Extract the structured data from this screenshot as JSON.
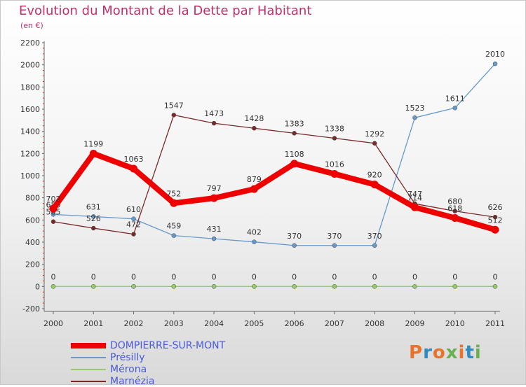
{
  "title": "Evolution du Montant de la Dette par Habitant",
  "subtitle": "(en €)",
  "logo": {
    "text": "Proxiti",
    "colors": [
      "#e8732a",
      "#2e8bc0",
      "#e8732a",
      "#6ab04c",
      "#e8732a",
      "#2e8bc0",
      "#6ab04c"
    ]
  },
  "chart_data": {
    "type": "line",
    "x": [
      "2000",
      "2001",
      "2002",
      "2003",
      "2004",
      "2005",
      "2006",
      "2007",
      "2008",
      "2009",
      "2010",
      "2011"
    ],
    "ylim": [
      -200,
      2200
    ],
    "yticks": [
      "-200",
      "0",
      "200",
      "400",
      "600",
      "800",
      "1000",
      "1200",
      "1400",
      "1600",
      "1800",
      "2000",
      "2200"
    ],
    "grid": false,
    "legend_position": "bottom-left",
    "series": [
      {
        "name": "DOMPIERRE-SUR-MONT",
        "color": "#ee0000",
        "values": [
          702,
          1199,
          1063,
          752,
          797,
          879,
          1108,
          1016,
          920,
          714,
          618,
          512
        ],
        "labels": [
          "702",
          "1199",
          "1063",
          "752",
          "797",
          "879",
          "1108",
          "1016",
          "920",
          "714",
          "618",
          "512"
        ]
      },
      {
        "name": "Présilly",
        "color": "#6699cc",
        "values": [
          650,
          631,
          610,
          459,
          431,
          402,
          370,
          370,
          370,
          1523,
          1611,
          2010
        ],
        "labels": [
          "650",
          "631",
          "610",
          "459",
          "431",
          "402",
          "370",
          "370",
          "370",
          "1523",
          "1611",
          "2010"
        ]
      },
      {
        "name": "Mérona",
        "color": "#99cc66",
        "values": [
          0,
          0,
          0,
          0,
          0,
          0,
          0,
          0,
          0,
          0,
          0,
          0
        ],
        "labels": [
          "0",
          "0",
          "0",
          "0",
          "0",
          "0",
          "0",
          "0",
          "0",
          "0",
          "0",
          "0"
        ]
      },
      {
        "name": "Marnézia",
        "color": "#7a2a2a",
        "values": [
          585,
          526,
          472,
          1547,
          1473,
          1428,
          1383,
          1338,
          1292,
          747,
          680,
          626
        ],
        "labels": [
          "585",
          "526",
          "472",
          "1547",
          "1473",
          "1428",
          "1383",
          "1338",
          "1292",
          "747",
          "680",
          "626"
        ]
      }
    ]
  }
}
